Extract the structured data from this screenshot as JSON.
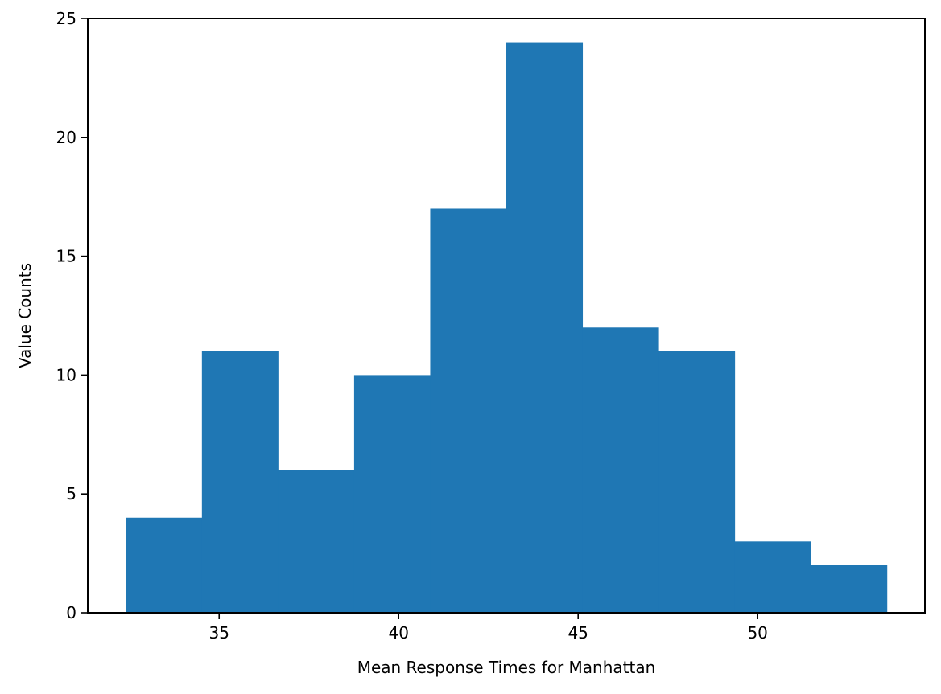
{
  "chart_data": {
    "type": "bar",
    "subtype": "histogram",
    "title": "",
    "xlabel": "Mean Response Times for Manhattan",
    "ylabel": "Value Counts",
    "xlim": [
      32.4,
      53.6
    ],
    "ylim": [
      0,
      25
    ],
    "x_ticks": [
      35,
      40,
      45,
      50
    ],
    "y_ticks": [
      0,
      5,
      10,
      15,
      20,
      25
    ],
    "bin_edges": [
      32.4,
      34.52,
      36.64,
      38.76,
      40.88,
      43.0,
      45.12,
      47.24,
      49.36,
      51.48,
      53.6
    ],
    "values": [
      4,
      11,
      6,
      10,
      17,
      24,
      12,
      11,
      3,
      2
    ],
    "bar_color": "#1f77b4",
    "grid": false,
    "legend": "none"
  }
}
